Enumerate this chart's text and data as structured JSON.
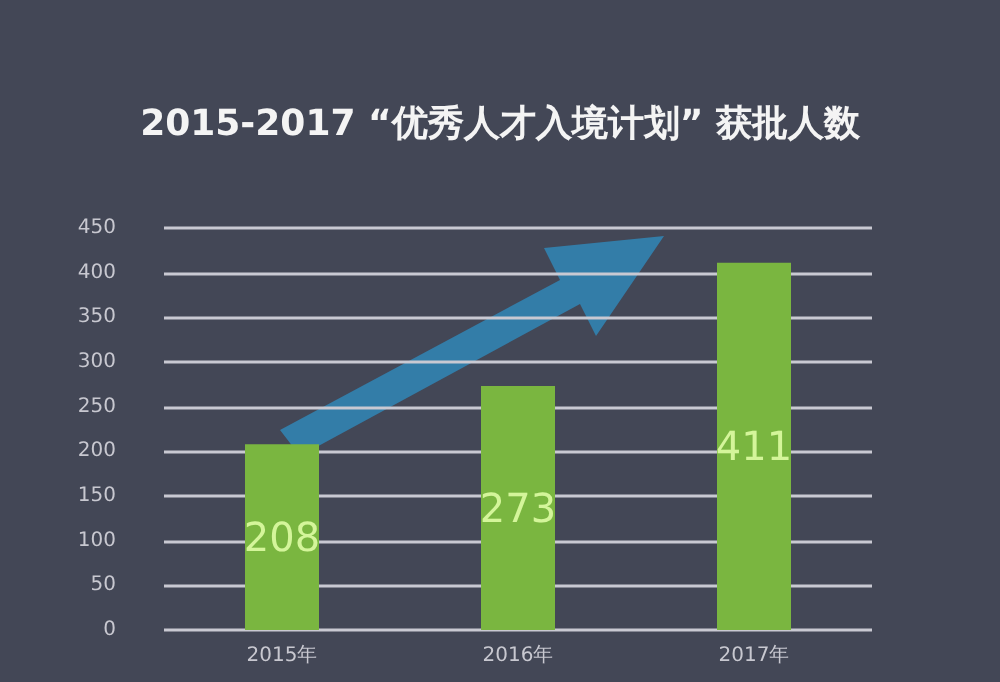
{
  "chart_data": {
    "type": "bar",
    "title": "2015-2017 “优秀人才入境计划” 获批人数",
    "categories": [
      "2015年",
      "2016年",
      "2017年"
    ],
    "values": [
      208,
      273,
      411
    ],
    "color": "#7ab640",
    "ylim": [
      0,
      450
    ],
    "yticks": [
      0,
      50,
      100,
      150,
      200,
      250,
      300,
      350,
      400,
      450
    ],
    "grid": "y",
    "data_labels": true
  }
}
